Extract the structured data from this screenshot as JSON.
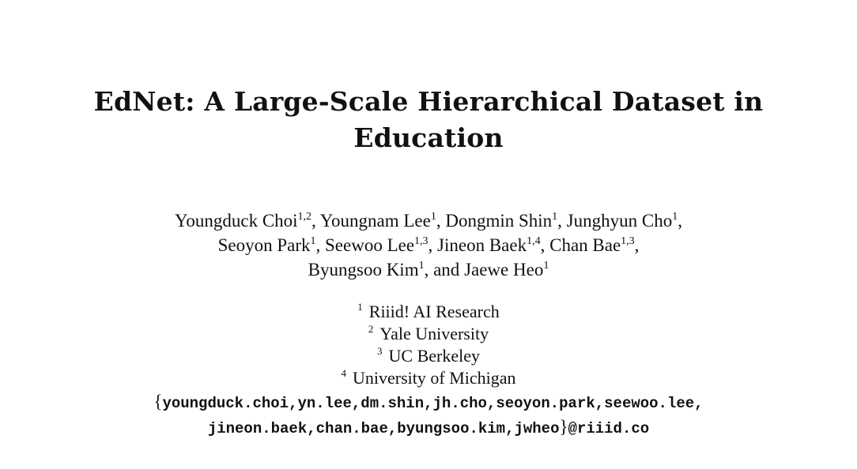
{
  "title": {
    "line1": "EdNet: A Large-Scale Hierarchical Dataset in",
    "line2": "Education"
  },
  "authors": [
    {
      "name": "Youngduck Choi",
      "aff": "1,2"
    },
    {
      "name": "Youngnam Lee",
      "aff": "1"
    },
    {
      "name": "Dongmin Shin",
      "aff": "1"
    },
    {
      "name": "Junghyun Cho",
      "aff": "1"
    },
    {
      "name": "Seoyon Park",
      "aff": "1"
    },
    {
      "name": "Seewoo Lee",
      "aff": "1,3"
    },
    {
      "name": "Jineon Baek",
      "aff": "1,4"
    },
    {
      "name": "Chan Bae",
      "aff": "1,3"
    },
    {
      "name": "Byungsoo Kim",
      "aff": "1"
    },
    {
      "name": "Jaewe Heo",
      "aff": "1"
    }
  ],
  "separators": {
    "comma": ",",
    "and": ", and"
  },
  "affiliations": [
    {
      "num": "1",
      "name": "Riiid! AI Research"
    },
    {
      "num": "2",
      "name": "Yale University"
    },
    {
      "num": "3",
      "name": "UC Berkeley"
    },
    {
      "num": "4",
      "name": "University of Michigan"
    }
  ],
  "emails": {
    "open_brace": "{",
    "line1": "youngduck.choi,yn.lee,dm.shin,jh.cho,seoyon.park,seewoo.lee,",
    "line2": "jineon.baek,chan.bae,byungsoo.kim,jwheo",
    "close_brace": "}",
    "domain": "@riiid.co"
  }
}
